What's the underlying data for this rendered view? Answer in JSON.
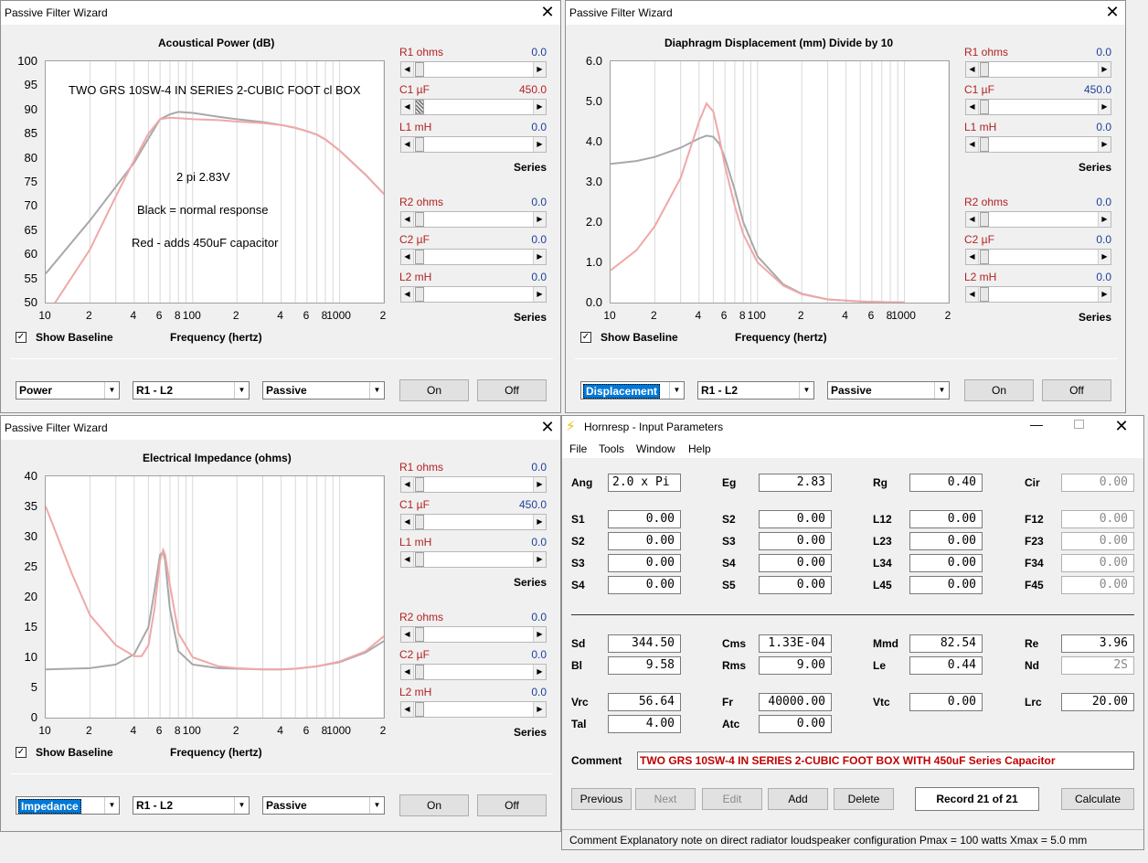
{
  "windows": {
    "power": {
      "title": "Passive Filter Wizard",
      "chart_title": "Acoustical Power (dB)",
      "x_axis_label": "Frequency (hertz)",
      "annotations": {
        "line1": "TWO GRS 10SW-4 IN SERIES 2-CUBIC FOOT cl BOX",
        "line2": "2 pi  2.83V",
        "line3": "Black = normal response",
        "line4": "Red - adds 450uF capacitor"
      },
      "show_baseline": "Show Baseline",
      "combo1": "Power",
      "combo2": "R1 - L2",
      "combo3": "Passive",
      "btn_on": "On",
      "btn_off": "Off"
    },
    "displacement": {
      "title": "Passive Filter Wizard",
      "chart_title": "Diaphragm Displacement (mm)    Divide by 10",
      "x_axis_label": "Frequency (hertz)",
      "show_baseline": "Show Baseline",
      "combo1": "Displacement",
      "combo2": "R1 - L2",
      "combo3": "Passive",
      "btn_on": "On",
      "btn_off": "Off"
    },
    "impedance": {
      "title": "Passive Filter Wizard",
      "chart_title": "Electrical Impedance (ohms)",
      "x_axis_label": "Frequency (hertz)",
      "show_baseline": "Show Baseline",
      "combo1": "Impedance",
      "combo2": "R1 - L2",
      "combo3": "Passive",
      "btn_on": "On",
      "btn_off": "Off"
    }
  },
  "sliders": {
    "power": [
      {
        "label": "R1  ohms",
        "value": "0.0"
      },
      {
        "label": "C1  µF",
        "value": "450.0"
      },
      {
        "label": "L1  mH",
        "value": "0.0"
      },
      {
        "label": "R2  ohms",
        "value": "0.0"
      },
      {
        "label": "C2  µF",
        "value": "0.0"
      },
      {
        "label": "L2  mH",
        "value": "0.0"
      }
    ],
    "displacement": [
      {
        "label": "R1  ohms",
        "value": "0.0"
      },
      {
        "label": "C1  µF",
        "value": "450.0"
      },
      {
        "label": "L1  mH",
        "value": "0.0"
      },
      {
        "label": "R2  ohms",
        "value": "0.0"
      },
      {
        "label": "C2  µF",
        "value": "0.0"
      },
      {
        "label": "L2  mH",
        "value": "0.0"
      }
    ],
    "impedance": [
      {
        "label": "R1  ohms",
        "value": "0.0"
      },
      {
        "label": "C1  µF",
        "value": "450.0"
      },
      {
        "label": "L1  mH",
        "value": "0.0"
      },
      {
        "label": "R2  ohms",
        "value": "0.0"
      },
      {
        "label": "C2  µF",
        "value": "0.0"
      },
      {
        "label": "L2  mH",
        "value": "0.0"
      }
    ],
    "series_label": "Series"
  },
  "chart_data": [
    {
      "type": "line",
      "title": "Acoustical Power (dB)",
      "xlabel": "Frequency (hertz)",
      "xscale": "log",
      "xlim": [
        10,
        2000
      ],
      "ylim": [
        50,
        100
      ],
      "x_ticks": [
        "10",
        "2",
        "4",
        "6",
        "8",
        "100",
        "2",
        "4",
        "6",
        "8",
        "1000",
        "2"
      ],
      "y_ticks": [
        "100",
        "95",
        "90",
        "85",
        "80",
        "75",
        "70",
        "65",
        "60",
        "55",
        "50"
      ],
      "grid": true,
      "series": [
        {
          "color": "#a8a8a8",
          "x": [
            10,
            20,
            30,
            40,
            50,
            60,
            70,
            80,
            100,
            150,
            200,
            300,
            400,
            500,
            600,
            700,
            800,
            1000,
            1500,
            2000
          ],
          "y": [
            56,
            67,
            74,
            79,
            84,
            88,
            89,
            89.5,
            89.3,
            88.5,
            88,
            87.4,
            86.8,
            86.2,
            85.5,
            84.8,
            83.8,
            81.5,
            76.5,
            72.5
          ]
        },
        {
          "color": "#f0a8a8",
          "x": [
            10,
            20,
            30,
            40,
            50,
            60,
            70,
            80,
            100,
            150,
            200,
            300,
            400,
            500,
            600,
            700,
            800,
            1000,
            1500,
            2000
          ],
          "y": [
            47,
            61,
            72,
            79.5,
            85,
            88,
            88.3,
            88.2,
            88,
            87.8,
            87.5,
            87.2,
            86.8,
            86.2,
            85.5,
            84.8,
            83.8,
            81.5,
            76.5,
            72.5
          ]
        }
      ]
    },
    {
      "type": "line",
      "title": "Diaphragm Displacement (mm)    Divide by 10",
      "xlabel": "Frequency (hertz)",
      "xscale": "log",
      "xlim": [
        10,
        2000
      ],
      "ylim": [
        0,
        6
      ],
      "x_ticks": [
        "10",
        "2",
        "4",
        "6",
        "8",
        "100",
        "2",
        "4",
        "6",
        "8",
        "1000",
        "2"
      ],
      "y_ticks": [
        "6.0",
        "5.0",
        "4.0",
        "3.0",
        "2.0",
        "1.0",
        "0.0"
      ],
      "grid": true,
      "series": [
        {
          "color": "#a8a8a8",
          "x": [
            10,
            15,
            20,
            30,
            40,
            45,
            50,
            55,
            60,
            70,
            80,
            100,
            150,
            200,
            300,
            500,
            800,
            1000
          ],
          "y": [
            3.45,
            3.52,
            3.62,
            3.85,
            4.08,
            4.15,
            4.12,
            3.95,
            3.6,
            2.8,
            2.0,
            1.15,
            0.45,
            0.22,
            0.08,
            0.03,
            0.01,
            0.005
          ]
        },
        {
          "color": "#f0a8a8",
          "x": [
            10,
            15,
            20,
            30,
            40,
            45,
            50,
            55,
            60,
            70,
            80,
            100,
            150,
            200,
            300,
            500,
            800,
            1000
          ],
          "y": [
            0.8,
            1.3,
            1.9,
            3.1,
            4.5,
            4.95,
            4.75,
            4.1,
            3.4,
            2.4,
            1.7,
            1.0,
            0.42,
            0.21,
            0.08,
            0.03,
            0.01,
            0.005
          ]
        }
      ]
    },
    {
      "type": "line",
      "title": "Electrical Impedance (ohms)",
      "xlabel": "Frequency (hertz)",
      "xscale": "log",
      "xlim": [
        10,
        2000
      ],
      "ylim": [
        0,
        40
      ],
      "x_ticks": [
        "10",
        "2",
        "4",
        "6",
        "8",
        "100",
        "2",
        "4",
        "6",
        "8",
        "1000",
        "2"
      ],
      "y_ticks": [
        "40",
        "35",
        "30",
        "25",
        "20",
        "15",
        "10",
        "5",
        "0"
      ],
      "grid": true,
      "series": [
        {
          "color": "#a8a8a8",
          "x": [
            10,
            20,
            30,
            40,
            50,
            55,
            60,
            63,
            65,
            70,
            80,
            100,
            150,
            200,
            300,
            400,
            500,
            700,
            1000,
            1500,
            2000
          ],
          "y": [
            8,
            8.2,
            8.8,
            10.5,
            15,
            21,
            27,
            27.5,
            26,
            18,
            11,
            8.8,
            8.2,
            8.1,
            8.0,
            8.0,
            8.1,
            8.5,
            9.2,
            10.8,
            12.7
          ]
        },
        {
          "color": "#f0a8a8",
          "x": [
            10,
            15,
            20,
            30,
            40,
            45,
            50,
            55,
            60,
            63,
            65,
            70,
            80,
            100,
            150,
            200,
            300,
            400,
            500,
            700,
            1000,
            1500,
            2000
          ],
          "y": [
            35,
            24,
            17,
            12,
            10.2,
            10.2,
            12,
            18,
            26,
            27.8,
            27,
            22,
            14,
            10,
            8.5,
            8.2,
            8.0,
            8.0,
            8.1,
            8.5,
            9.3,
            11,
            13.5
          ]
        }
      ]
    }
  ],
  "hornresp": {
    "title": "Hornresp - Input Parameters",
    "menu": [
      "File",
      "Tools",
      "Window",
      "Help"
    ],
    "fields": [
      {
        "label": "Ang",
        "value": "2.0 x Pi",
        "align": "left"
      },
      {
        "label": "Eg",
        "value": "2.83"
      },
      {
        "label": "Rg",
        "value": "0.40"
      },
      {
        "label": "Cir",
        "value": "0.00",
        "grey": true
      },
      {
        "label": "S1",
        "value": "0.00"
      },
      {
        "label": "S2",
        "value": "0.00"
      },
      {
        "label": "L12",
        "value": "0.00"
      },
      {
        "label": "F12",
        "value": "0.00",
        "grey": true
      },
      {
        "label": "S2",
        "value": "0.00"
      },
      {
        "label": "S3",
        "value": "0.00"
      },
      {
        "label": "L23",
        "value": "0.00"
      },
      {
        "label": "F23",
        "value": "0.00",
        "grey": true
      },
      {
        "label": "S3",
        "value": "0.00"
      },
      {
        "label": "S4",
        "value": "0.00"
      },
      {
        "label": "L34",
        "value": "0.00"
      },
      {
        "label": "F34",
        "value": "0.00",
        "grey": true
      },
      {
        "label": "S4",
        "value": "0.00"
      },
      {
        "label": "S5",
        "value": "0.00"
      },
      {
        "label": "L45",
        "value": "0.00"
      },
      {
        "label": "F45",
        "value": "0.00",
        "grey": true
      },
      {
        "label": "Sd",
        "value": "344.50"
      },
      {
        "label": "Cms",
        "value": "1.33E-04"
      },
      {
        "label": "Mmd",
        "value": "82.54"
      },
      {
        "label": "Re",
        "value": "3.96"
      },
      {
        "label": "Bl",
        "value": "9.58"
      },
      {
        "label": "Rms",
        "value": "9.00"
      },
      {
        "label": "Le",
        "value": "0.44"
      },
      {
        "label": "Nd",
        "value": "2S",
        "grey": true
      },
      {
        "label": "Vrc",
        "value": "56.64"
      },
      {
        "label": "Fr",
        "value": "40000.00"
      },
      {
        "label": "Vtc",
        "value": "0.00"
      },
      {
        "label": "Lrc",
        "value": "20.00"
      },
      {
        "label": "Tal",
        "value": "4.00"
      },
      {
        "label": "Atc",
        "value": "0.00"
      }
    ],
    "comment_label": "Comment",
    "comment_value": "TWO GRS 10SW-4 IN SERIES 2-CUBIC FOOT BOX WITH 450uF Series Capacitor",
    "buttons": {
      "previous": "Previous",
      "next": "Next",
      "edit": "Edit",
      "add": "Add",
      "delete": "Delete",
      "record": "Record 21 of 21",
      "calculate": "Calculate"
    },
    "status": "Comment   Explanatory note on direct radiator loudspeaker configuration   Pmax = 100 watts   Xmax = 5.0 mm"
  }
}
